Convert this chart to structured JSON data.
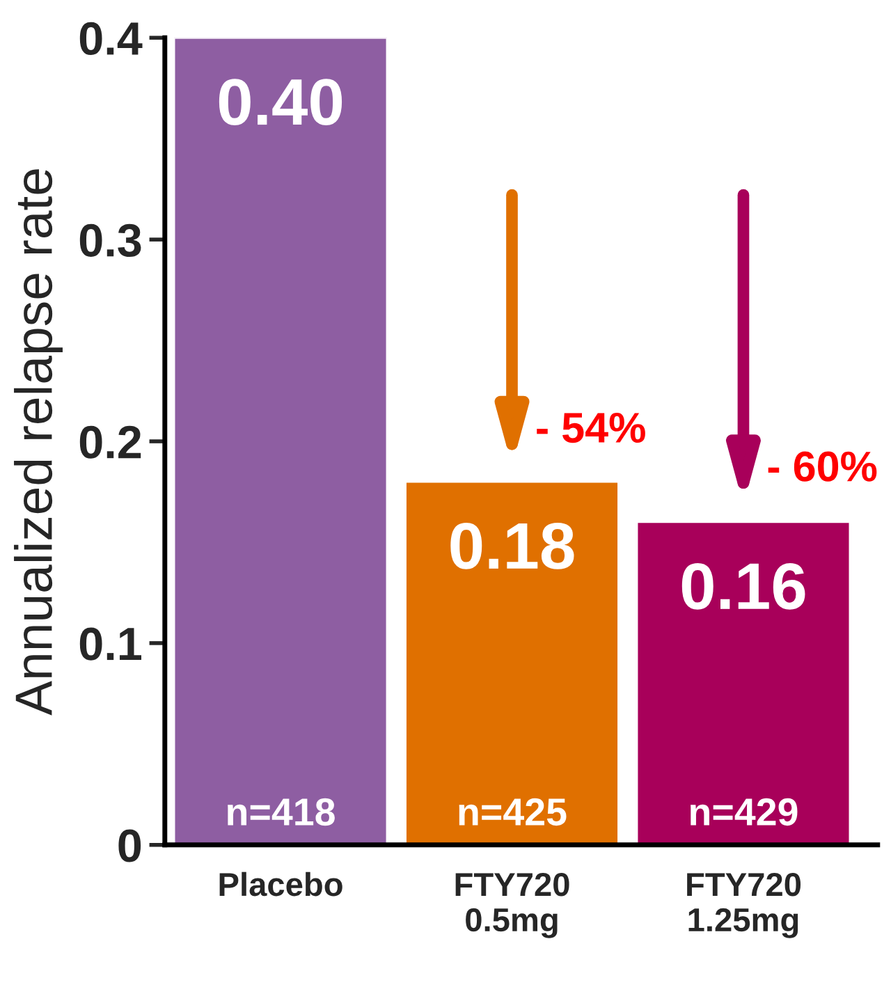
{
  "chart_data": {
    "type": "bar",
    "ylabel": "Annualized relapse rate",
    "categories": [
      "Placebo",
      "FTY720\n0.5mg",
      "FTY720\n1.25mg"
    ],
    "values": [
      0.4,
      0.18,
      0.16
    ],
    "colors": [
      "#8e5ea2",
      "#e07000",
      "#a8005a"
    ],
    "ylim": [
      0,
      0.4
    ],
    "yticks": [
      0,
      0.1,
      0.2,
      0.3,
      0.4
    ],
    "value_labels": [
      "0.40",
      "0.18",
      "0.16"
    ],
    "grid": false,
    "legend": false,
    "annotations": [
      "- 54%",
      "- 60%",
      "n=418",
      "n=425",
      "n=429"
    ]
  }
}
